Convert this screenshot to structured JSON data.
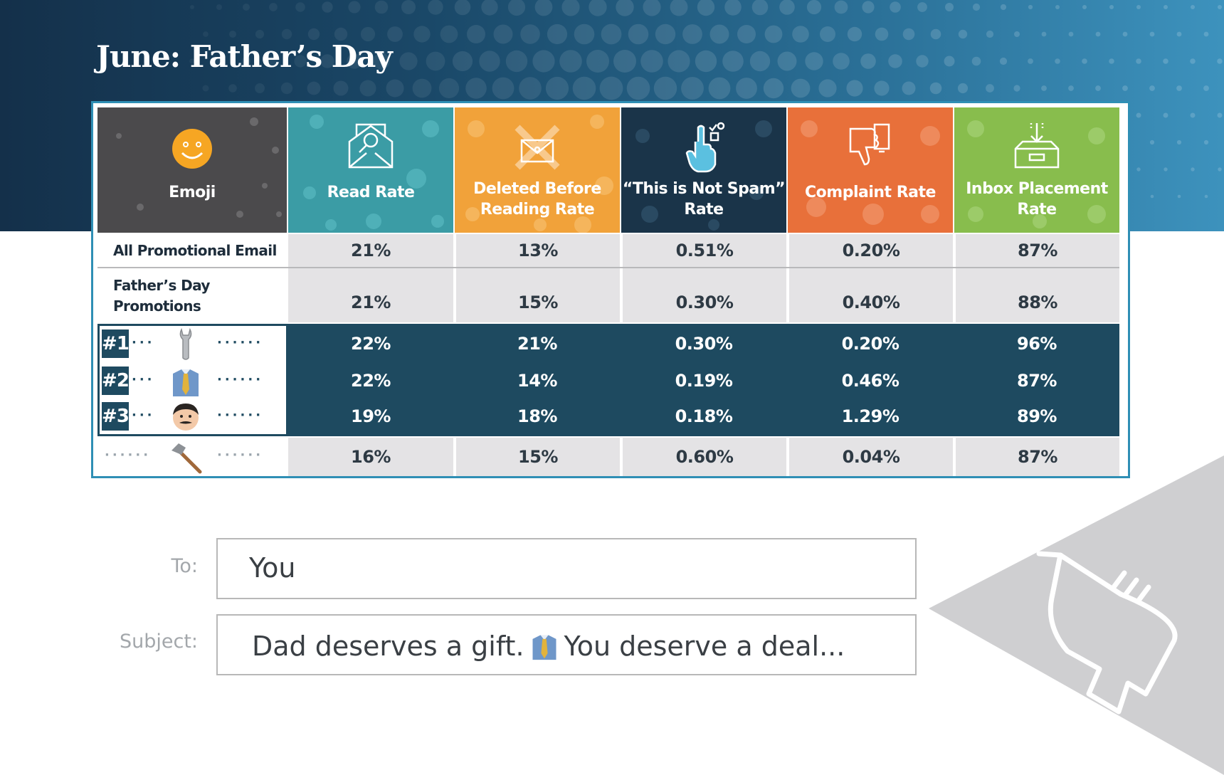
{
  "title": "June: Father’s Day",
  "chart_data": {
    "type": "table",
    "columns": [
      {
        "key": "emoji",
        "label": "Emoji",
        "icon": "smiley-icon",
        "color": "#4b4a4c"
      },
      {
        "key": "read",
        "label": "Read Rate",
        "icon": "magnifier-envelope-icon",
        "color": "#3b9ca5"
      },
      {
        "key": "deleted",
        "label": "Deleted Before Reading Rate",
        "icon": "deleted-envelope-icon",
        "color": "#f1a23a"
      },
      {
        "key": "notspam",
        "label": "“This is Not Spam” Rate",
        "icon": "pointing-hand-icon",
        "color": "#1a3449"
      },
      {
        "key": "complaint",
        "label": "Complaint Rate",
        "icon": "thumbs-down-icon",
        "color": "#e8703a"
      },
      {
        "key": "inbox",
        "label": "Inbox Placement Rate",
        "icon": "inbox-tray-icon",
        "color": "#88bd4d"
      }
    ],
    "rows": [
      {
        "label": "All Promotional Email",
        "values": [
          "21%",
          "13%",
          "0.51%",
          "0.20%",
          "87%"
        ]
      },
      {
        "label": "Father’s Day Promotions",
        "values": [
          "21%",
          "15%",
          "0.30%",
          "0.40%",
          "88%"
        ]
      },
      {
        "rank": "#1",
        "emoji": "wrench-icon",
        "values": [
          "22%",
          "21%",
          "0.30%",
          "0.20%",
          "96%"
        ]
      },
      {
        "rank": "#2",
        "emoji": "necktie-icon",
        "values": [
          "22%",
          "14%",
          "0.19%",
          "0.46%",
          "87%"
        ]
      },
      {
        "rank": "#3",
        "emoji": "man-face-icon",
        "values": [
          "19%",
          "18%",
          "0.18%",
          "1.29%",
          "89%"
        ]
      },
      {
        "rank": "",
        "emoji": "hammer-icon",
        "values": [
          "16%",
          "15%",
          "0.60%",
          "0.04%",
          "87%"
        ]
      }
    ]
  },
  "email": {
    "to_label": "To:",
    "to_value": "You",
    "subject_label": "Subject:",
    "subject_before": "Dad deserves a gift.",
    "subject_emoji": "necktie-icon",
    "subject_after": "You deserve a deal..."
  },
  "decor": {
    "corner_icon": "drill-icon"
  }
}
